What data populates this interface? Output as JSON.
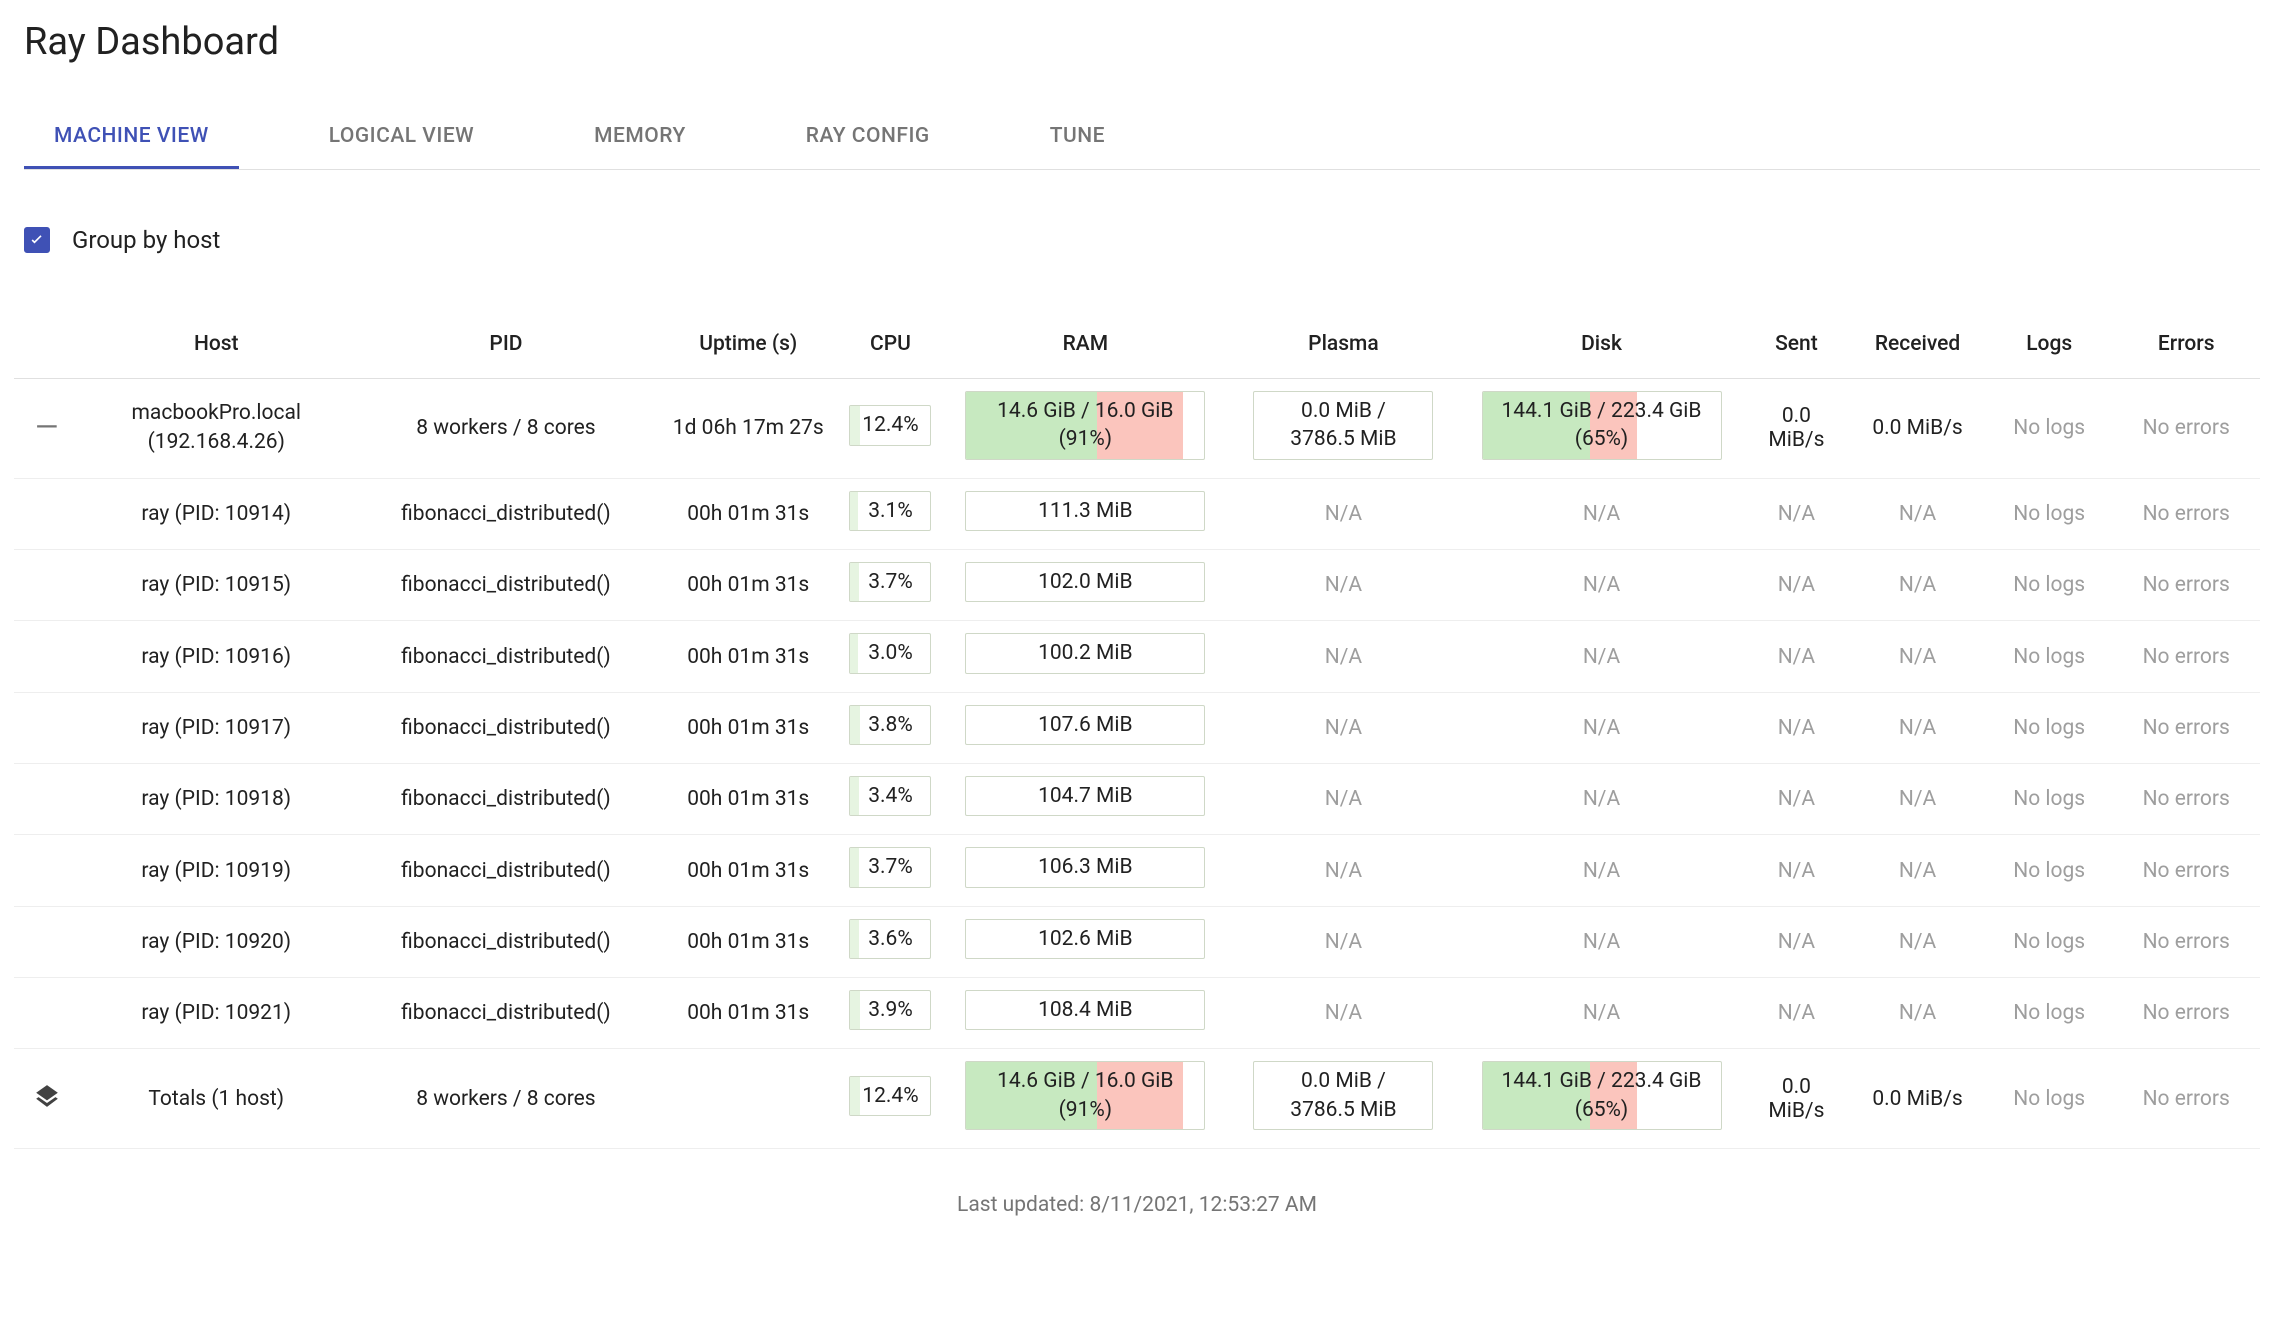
{
  "title": "Ray Dashboard",
  "tabs": [
    {
      "label": "MACHINE VIEW",
      "active": true
    },
    {
      "label": "LOGICAL VIEW",
      "active": false
    },
    {
      "label": "MEMORY",
      "active": false
    },
    {
      "label": "RAY CONFIG",
      "active": false
    },
    {
      "label": "TUNE",
      "active": false
    }
  ],
  "groupby_label": "Group by host",
  "groupby_checked": true,
  "columns": [
    "",
    "Host",
    "PID",
    "Uptime (s)",
    "CPU",
    "RAM",
    "Plasma",
    "Disk",
    "Sent",
    "Received",
    "Logs",
    "Errors"
  ],
  "colors": {
    "accent": "#3f51b5",
    "fill_green": "#c7e9c0",
    "fill_red": "#fbc5bd",
    "fill_light_green": "#e6f4e1",
    "na_text": "#9e9e9e",
    "border": "#e0e0e0"
  },
  "host_row": {
    "host_name": "macbookPro.local",
    "host_ip": "(192.168.4.26)",
    "pid": "8 workers / 8 cores",
    "uptime": "1d 06h 17m 27s",
    "cpu": {
      "text": "12.4%",
      "pct": 12.4
    },
    "ram": {
      "text": "14.6 GiB / 16.0 GiB (91%)",
      "pct_green": 55,
      "pct_red": 36
    },
    "plasma": {
      "text": "0.0 MiB / 3786.5 MiB",
      "pct": 0
    },
    "disk": {
      "text": "144.1 GiB / 223.4 GiB (65%)",
      "pct_green": 45,
      "pct_red": 20
    },
    "sent": "0.0 MiB/s",
    "received": "0.0 MiB/s",
    "logs": "No logs",
    "errors": "No errors"
  },
  "worker_rows": [
    {
      "host": "ray (PID: 10914)",
      "pid": "fibonacci_distributed()",
      "uptime": "00h 01m 31s",
      "cpu": {
        "text": "3.1%",
        "pct": 3.1
      },
      "ram": {
        "text": "111.3 MiB"
      },
      "plasma": "N/A",
      "disk": "N/A",
      "sent": "N/A",
      "received": "N/A",
      "logs": "No logs",
      "errors": "No errors"
    },
    {
      "host": "ray (PID: 10915)",
      "pid": "fibonacci_distributed()",
      "uptime": "00h 01m 31s",
      "cpu": {
        "text": "3.7%",
        "pct": 3.7
      },
      "ram": {
        "text": "102.0 MiB"
      },
      "plasma": "N/A",
      "disk": "N/A",
      "sent": "N/A",
      "received": "N/A",
      "logs": "No logs",
      "errors": "No errors"
    },
    {
      "host": "ray (PID: 10916)",
      "pid": "fibonacci_distributed()",
      "uptime": "00h 01m 31s",
      "cpu": {
        "text": "3.0%",
        "pct": 3.0
      },
      "ram": {
        "text": "100.2 MiB"
      },
      "plasma": "N/A",
      "disk": "N/A",
      "sent": "N/A",
      "received": "N/A",
      "logs": "No logs",
      "errors": "No errors"
    },
    {
      "host": "ray (PID: 10917)",
      "pid": "fibonacci_distributed()",
      "uptime": "00h 01m 31s",
      "cpu": {
        "text": "3.8%",
        "pct": 3.8
      },
      "ram": {
        "text": "107.6 MiB"
      },
      "plasma": "N/A",
      "disk": "N/A",
      "sent": "N/A",
      "received": "N/A",
      "logs": "No logs",
      "errors": "No errors"
    },
    {
      "host": "ray (PID: 10918)",
      "pid": "fibonacci_distributed()",
      "uptime": "00h 01m 31s",
      "cpu": {
        "text": "3.4%",
        "pct": 3.4
      },
      "ram": {
        "text": "104.7 MiB"
      },
      "plasma": "N/A",
      "disk": "N/A",
      "sent": "N/A",
      "received": "N/A",
      "logs": "No logs",
      "errors": "No errors"
    },
    {
      "host": "ray (PID: 10919)",
      "pid": "fibonacci_distributed()",
      "uptime": "00h 01m 31s",
      "cpu": {
        "text": "3.7%",
        "pct": 3.7
      },
      "ram": {
        "text": "106.3 MiB"
      },
      "plasma": "N/A",
      "disk": "N/A",
      "sent": "N/A",
      "received": "N/A",
      "logs": "No logs",
      "errors": "No errors"
    },
    {
      "host": "ray (PID: 10920)",
      "pid": "fibonacci_distributed()",
      "uptime": "00h 01m 31s",
      "cpu": {
        "text": "3.6%",
        "pct": 3.6
      },
      "ram": {
        "text": "102.6 MiB"
      },
      "plasma": "N/A",
      "disk": "N/A",
      "sent": "N/A",
      "received": "N/A",
      "logs": "No logs",
      "errors": "No errors"
    },
    {
      "host": "ray (PID: 10921)",
      "pid": "fibonacci_distributed()",
      "uptime": "00h 01m 31s",
      "cpu": {
        "text": "3.9%",
        "pct": 3.9
      },
      "ram": {
        "text": "108.4 MiB"
      },
      "plasma": "N/A",
      "disk": "N/A",
      "sent": "N/A",
      "received": "N/A",
      "logs": "No logs",
      "errors": "No errors"
    }
  ],
  "totals_row": {
    "host": "Totals (1 host)",
    "pid": "8 workers / 8 cores",
    "uptime": "",
    "cpu": {
      "text": "12.4%",
      "pct": 12.4
    },
    "ram": {
      "text": "14.6 GiB / 16.0 GiB (91%)",
      "pct_green": 55,
      "pct_red": 36
    },
    "plasma": {
      "text": "0.0 MiB / 3786.5 MiB",
      "pct": 0
    },
    "disk": {
      "text": "144.1 GiB / 223.4 GiB (65%)",
      "pct_green": 45,
      "pct_red": 20
    },
    "sent": "0.0 MiB/s",
    "received": "0.0 MiB/s",
    "logs": "No logs",
    "errors": "No errors"
  },
  "footer": "Last updated: 8/11/2021, 12:53:27 AM"
}
